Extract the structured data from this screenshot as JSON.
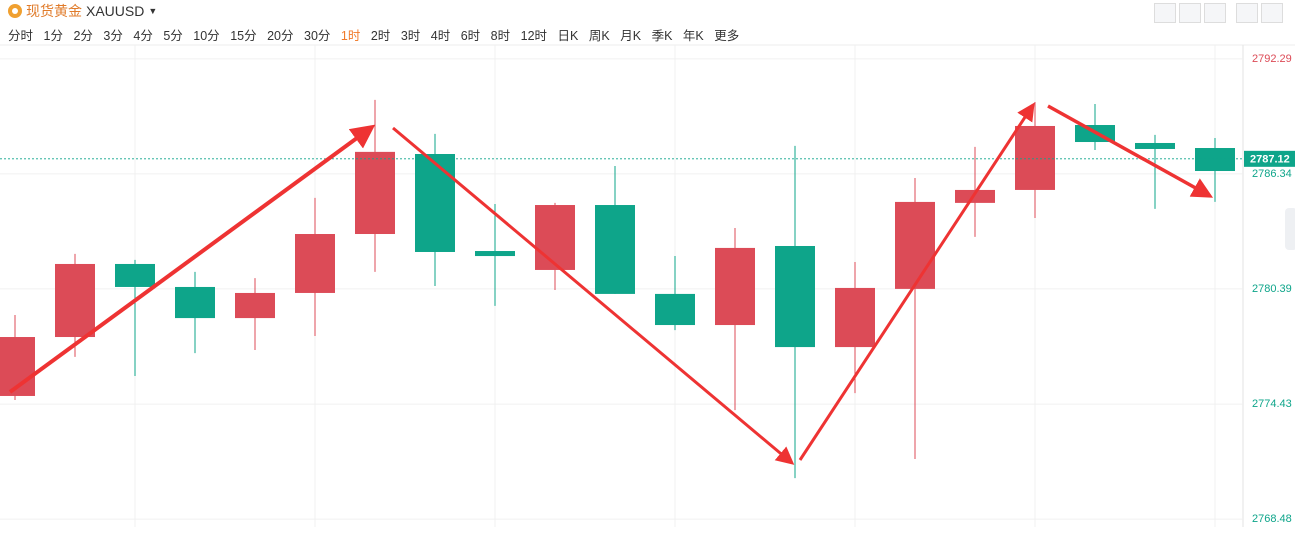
{
  "header": {
    "name": "现货黄金",
    "symbol": "XAUUSD"
  },
  "timeframes": [
    "分时",
    "1分",
    "2分",
    "3分",
    "4分",
    "5分",
    "10分",
    "15分",
    "20分",
    "30分",
    "1时",
    "2时",
    "3时",
    "4时",
    "6时",
    "8时",
    "12时",
    "日K",
    "周K",
    "月K",
    "季K",
    "年K",
    "更多"
  ],
  "active_timeframe": 10,
  "chart_data": {
    "type": "candlestick",
    "open": [
      2774.85,
      2777.9,
      2781.68,
      2780.49,
      2778.88,
      2780.18,
      2783.23,
      2787.37,
      2782.35,
      2781.37,
      2784.73,
      2780.13,
      2778.52,
      2782.61,
      2777.38,
      2780.39,
      2784.84,
      2785.51,
      2788.87,
      2787.94,
      2787.68
    ],
    "high": [
      2779.04,
      2782.2,
      2781.89,
      2781.27,
      2780.95,
      2785.1,
      2790.17,
      2788.41,
      2784.78,
      2784.84,
      2786.75,
      2782.09,
      2783.54,
      2787.79,
      2781.78,
      2786.13,
      2787.74,
      2790.06,
      2789.96,
      2788.36,
      2788.2
    ],
    "low": [
      2774.64,
      2776.87,
      2775.88,
      2777.07,
      2777.23,
      2777.95,
      2781.27,
      2780.54,
      2779.51,
      2780.33,
      2780.13,
      2778.26,
      2774.12,
      2770.6,
      2775.0,
      2771.59,
      2783.08,
      2784.06,
      2787.58,
      2784.53,
      2784.89
    ],
    "close": [
      2777.9,
      2781.68,
      2780.49,
      2778.88,
      2780.18,
      2783.23,
      2787.48,
      2782.3,
      2782.09,
      2784.73,
      2780.13,
      2778.52,
      2782.51,
      2777.38,
      2780.44,
      2784.89,
      2785.51,
      2788.82,
      2787.99,
      2787.63,
      2786.49
    ],
    "up_color": "#dc4b57",
    "down_color": "#0ea58a",
    "last_price": 2787.12,
    "ylim": [
      2768.07,
      2793.01
    ],
    "yticks": [
      2768.48,
      2774.43,
      2780.39,
      2786.34,
      2792.29
    ],
    "grid": true
  }
}
